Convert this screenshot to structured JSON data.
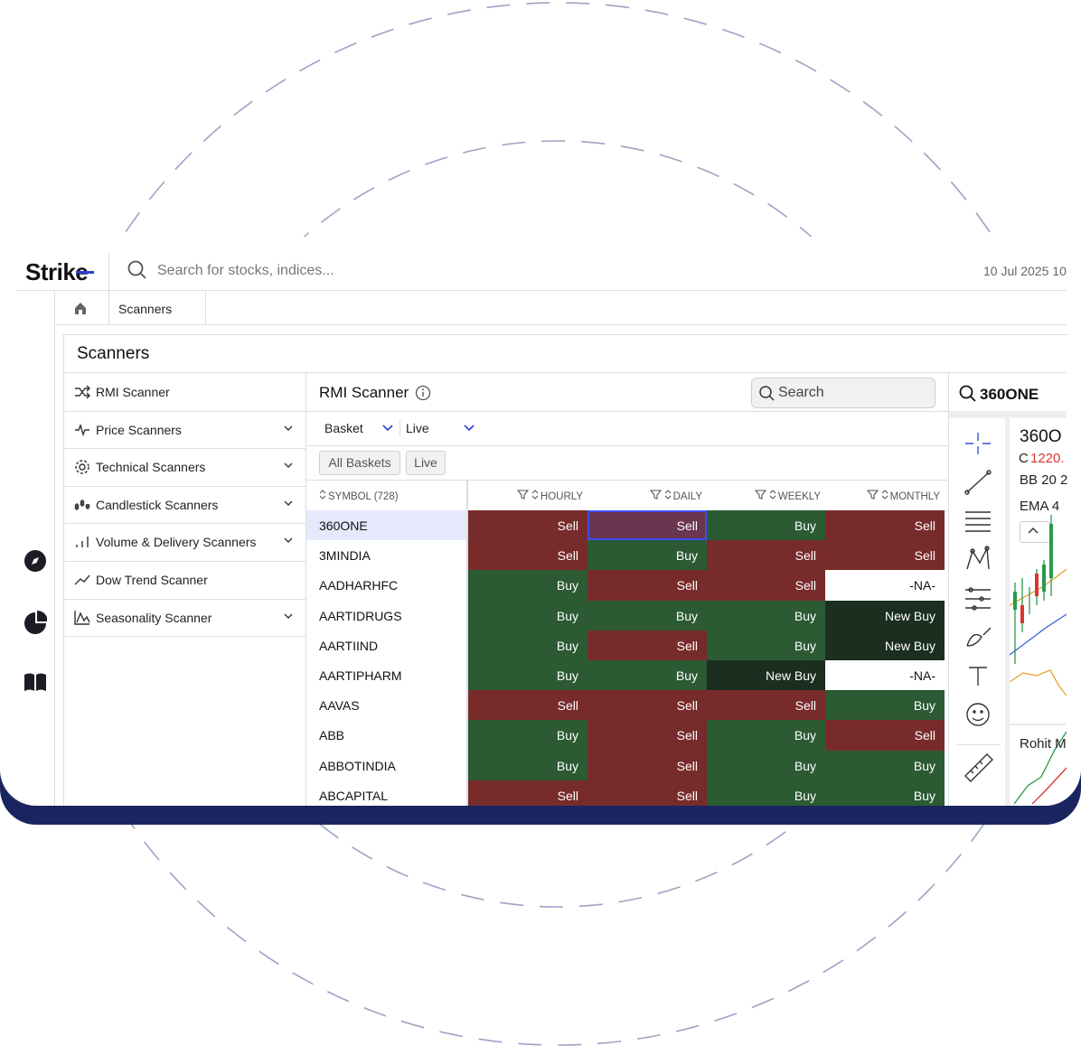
{
  "header": {
    "logo": "Strike",
    "search_placeholder": "Search for stocks, indices...",
    "datetime": "10 Jul 2025 10"
  },
  "breadcrumb": {
    "tab": "Scanners"
  },
  "panel": {
    "title": "Scanners"
  },
  "menu": [
    {
      "label": "RMI Scanner",
      "expandable": false
    },
    {
      "label": "Price Scanners",
      "expandable": true
    },
    {
      "label": "Technical Scanners",
      "expandable": true
    },
    {
      "label": "Candlestick Scanners",
      "expandable": true
    },
    {
      "label": "Volume & Delivery Scanners",
      "expandable": true
    },
    {
      "label": "Dow Trend Scanner",
      "expandable": false
    },
    {
      "label": "Seasonality Scanner",
      "expandable": true
    }
  ],
  "scanner": {
    "title": "RMI Scanner",
    "search": "Search",
    "basket": "Basket",
    "mode": "Live",
    "chips": [
      "All Baskets",
      "Live"
    ]
  },
  "table": {
    "columns": [
      "SYMBOL (728)",
      "HOURLY",
      "DAILY",
      "WEEKLY",
      "MONTHLY"
    ],
    "signal_colors": {
      "Sell": "#782b2b",
      "Buy": "#2b5a33",
      "New Buy": "#1b2e20",
      "-NA-": "#ffffff"
    },
    "rows": [
      [
        "360ONE",
        "Sell",
        "Sell",
        "Buy",
        "Sell"
      ],
      [
        "3MINDIA",
        "Sell",
        "Buy",
        "Sell",
        "Sell"
      ],
      [
        "AADHARHFC",
        "Buy",
        "Sell",
        "Sell",
        "-NA-"
      ],
      [
        "AARTIDRUGS",
        "Buy",
        "Buy",
        "Buy",
        "New Buy"
      ],
      [
        "AARTIIND",
        "Buy",
        "Sell",
        "Buy",
        "New Buy"
      ],
      [
        "AARTIPHARM",
        "Buy",
        "Buy",
        "New Buy",
        "-NA-"
      ],
      [
        "AAVAS",
        "Sell",
        "Sell",
        "Sell",
        "Buy"
      ],
      [
        "ABB",
        "Buy",
        "Sell",
        "Buy",
        "Sell"
      ],
      [
        "ABBOTINDIA",
        "Buy",
        "Sell",
        "Buy",
        "Buy"
      ],
      [
        "ABCAPITAL",
        "Sell",
        "Sell",
        "Buy",
        "Buy"
      ]
    ]
  },
  "chart_panel": {
    "symbol": "360ONE",
    "title": "360O",
    "close_label": "C",
    "close_value": "1220.",
    "bb": "BB 20 2",
    "ema": "EMA 4",
    "indicator": "Rohit M"
  }
}
